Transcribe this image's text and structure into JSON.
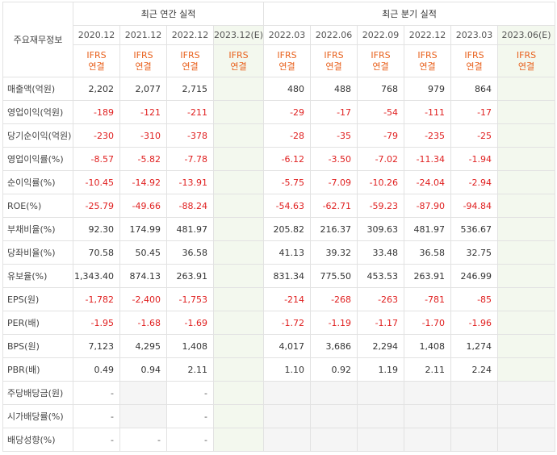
{
  "header": {
    "corner_label": "주요재무정보",
    "annual_group": "최근 연간 실적",
    "quarter_group": "최근 분기 실적",
    "periods": [
      "2020.12",
      "2021.12",
      "2022.12",
      "2023.12(E)",
      "2022.03",
      "2022.06",
      "2022.09",
      "2022.12",
      "2023.03",
      "2023.06(E)"
    ],
    "ifrs_line1": "IFRS",
    "ifrs_line2": "연결"
  },
  "rows": [
    {
      "label": "매출액(억원)",
      "values": [
        "2,202",
        "2,077",
        "2,715",
        "",
        "480",
        "488",
        "768",
        "979",
        "864",
        ""
      ]
    },
    {
      "label": "영업이익(억원)",
      "values": [
        "-189",
        "-121",
        "-211",
        "",
        "-29",
        "-17",
        "-54",
        "-111",
        "-17",
        ""
      ]
    },
    {
      "label": "당기순이익(억원)",
      "values": [
        "-230",
        "-310",
        "-378",
        "",
        "-28",
        "-35",
        "-79",
        "-235",
        "-25",
        ""
      ]
    },
    {
      "label": "영업이익률(%)",
      "values": [
        "-8.57",
        "-5.82",
        "-7.78",
        "",
        "-6.12",
        "-3.50",
        "-7.02",
        "-11.34",
        "-1.94",
        ""
      ]
    },
    {
      "label": "순이익률(%)",
      "values": [
        "-10.45",
        "-14.92",
        "-13.91",
        "",
        "-5.75",
        "-7.09",
        "-10.26",
        "-24.04",
        "-2.94",
        ""
      ]
    },
    {
      "label": "ROE(%)",
      "values": [
        "-25.79",
        "-49.66",
        "-88.24",
        "",
        "-54.63",
        "-62.71",
        "-59.23",
        "-87.90",
        "-94.84",
        ""
      ]
    },
    {
      "label": "부채비율(%)",
      "values": [
        "92.30",
        "174.99",
        "481.97",
        "",
        "205.82",
        "216.37",
        "309.63",
        "481.97",
        "536.67",
        ""
      ]
    },
    {
      "label": "당좌비율(%)",
      "values": [
        "70.58",
        "50.45",
        "36.58",
        "",
        "41.13",
        "39.32",
        "33.48",
        "36.58",
        "32.75",
        ""
      ]
    },
    {
      "label": "유보율(%)",
      "values": [
        "1,343.40",
        "874.13",
        "263.91",
        "",
        "831.34",
        "775.50",
        "453.53",
        "263.91",
        "246.99",
        ""
      ]
    },
    {
      "label": "EPS(원)",
      "values": [
        "-1,782",
        "-2,400",
        "-1,753",
        "",
        "-214",
        "-268",
        "-263",
        "-781",
        "-85",
        ""
      ]
    },
    {
      "label": "PER(배)",
      "values": [
        "-1.95",
        "-1.68",
        "-1.69",
        "",
        "-1.72",
        "-1.19",
        "-1.17",
        "-1.70",
        "-1.96",
        ""
      ]
    },
    {
      "label": "BPS(원)",
      "values": [
        "7,123",
        "4,295",
        "1,408",
        "",
        "4,017",
        "3,686",
        "2,294",
        "1,408",
        "1,274",
        ""
      ]
    },
    {
      "label": "PBR(배)",
      "values": [
        "0.49",
        "0.94",
        "2.11",
        "",
        "1.10",
        "0.92",
        "1.19",
        "2.11",
        "2.24",
        ""
      ]
    },
    {
      "label": "주당배당금(원)",
      "values": [
        "-",
        "",
        "-",
        "",
        "",
        "",
        "",
        "",
        "",
        ""
      ]
    },
    {
      "label": "시가배당률(%)",
      "values": [
        "-",
        "",
        "-",
        "",
        "",
        "",
        "",
        "",
        "",
        ""
      ]
    },
    {
      "label": "배당성향(%)",
      "values": [
        "-",
        "-",
        "-",
        "",
        "",
        "",
        "",
        "",
        "",
        ""
      ]
    }
  ],
  "colors": {
    "negative": "#e02020",
    "ifrs": "#e8601c",
    "estimate_bg": "#f3f8ee"
  }
}
